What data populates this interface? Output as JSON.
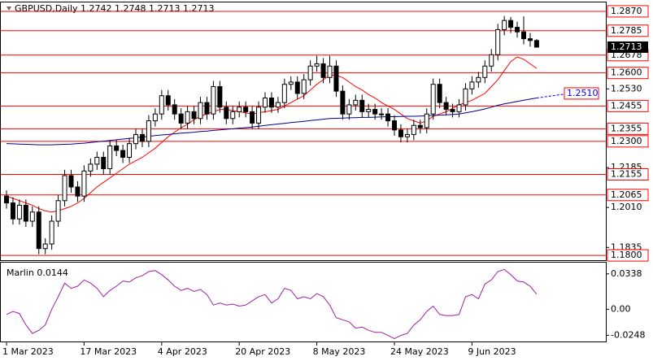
{
  "chart_data": {
    "type": "candlestick",
    "title": "GBPUSD,Daily  1.2742 1.2748 1.2713 1.2713",
    "categories": [
      "1 Mar 2023",
      null,
      null,
      null,
      null,
      null,
      null,
      null,
      null,
      null,
      null,
      null,
      "17 Mar 2023",
      null,
      null,
      null,
      null,
      null,
      null,
      null,
      null,
      null,
      null,
      null,
      "4 Apr 2023",
      null,
      null,
      null,
      null,
      null,
      null,
      null,
      null,
      null,
      null,
      null,
      "20 Apr 2023",
      null,
      null,
      null,
      null,
      null,
      null,
      null,
      null,
      null,
      null,
      null,
      "8 May 2023",
      null,
      null,
      null,
      null,
      null,
      null,
      null,
      null,
      null,
      null,
      null,
      "24 May 2023",
      null,
      null,
      null,
      null,
      null,
      null,
      null,
      null,
      null,
      null,
      null,
      "9 Jun 2023",
      null,
      null,
      null,
      null,
      null,
      null,
      null,
      null,
      null,
      null
    ],
    "open": [
      1.206,
      1.203,
      1.196,
      1.202,
      1.195,
      1.199,
      1.183,
      1.185,
      1.195,
      1.204,
      1.215,
      1.21,
      1.206,
      1.217,
      1.22,
      1.223,
      1.218,
      1.228,
      1.226,
      1.223,
      1.229,
      1.233,
      1.23,
      1.239,
      1.242,
      1.25,
      1.246,
      1.242,
      1.238,
      1.243,
      1.24,
      1.247,
      1.242,
      1.254,
      1.245,
      1.24,
      1.243,
      1.245,
      1.243,
      1.238,
      1.245,
      1.249,
      1.245,
      1.247,
      1.255,
      1.256,
      1.251,
      1.257,
      1.263,
      1.264,
      1.258,
      1.263,
      1.252,
      1.242,
      1.246,
      1.248,
      1.243,
      1.244,
      1.242,
      1.242,
      1.239,
      1.235,
      1.232,
      1.233,
      1.237,
      1.236,
      1.242,
      1.255,
      1.247,
      1.244,
      1.243,
      1.246,
      1.253,
      1.256,
      1.258,
      1.263,
      1.268,
      1.279,
      1.283,
      1.28,
      1.278,
      1.275,
      1.2742
    ],
    "high": [
      1.2085,
      1.2055,
      1.2045,
      1.2045,
      1.2015,
      1.2015,
      1.1875,
      1.1975,
      1.2065,
      1.2175,
      1.2175,
      1.2125,
      1.2195,
      1.2225,
      1.2255,
      1.2255,
      1.2305,
      1.2305,
      1.2285,
      1.2315,
      1.2355,
      1.2355,
      1.2415,
      1.2445,
      1.2525,
      1.2525,
      1.2485,
      1.2445,
      1.2455,
      1.2455,
      1.2495,
      1.2495,
      1.2565,
      1.2565,
      1.2475,
      1.2455,
      1.2475,
      1.2475,
      1.2455,
      1.2475,
      1.2515,
      1.2515,
      1.2495,
      1.2575,
      1.2585,
      1.2585,
      1.2595,
      1.2655,
      1.2675,
      1.2665,
      1.2675,
      1.2655,
      1.2545,
      1.2485,
      1.2505,
      1.2505,
      1.2465,
      1.2465,
      1.2445,
      1.2445,
      1.2415,
      1.2375,
      1.2355,
      1.2395,
      1.2395,
      1.2445,
      1.2575,
      1.2575,
      1.2495,
      1.2465,
      1.2485,
      1.2555,
      1.2585,
      1.2605,
      1.2655,
      1.2705,
      1.2815,
      1.285,
      1.2845,
      1.2825,
      1.2848,
      1.2775,
      1.2748
    ],
    "low": [
      1.2005,
      1.1935,
      1.1935,
      1.1925,
      1.1925,
      1.1805,
      1.1805,
      1.1825,
      1.1925,
      1.2015,
      1.2075,
      1.2035,
      1.2035,
      1.2145,
      1.2175,
      1.2155,
      1.2155,
      1.2235,
      1.2205,
      1.2205,
      1.2265,
      1.2275,
      1.2275,
      1.2365,
      1.2395,
      1.2435,
      1.2395,
      1.2355,
      1.2355,
      1.2375,
      1.2375,
      1.2395,
      1.2395,
      1.2425,
      1.2375,
      1.2375,
      1.2405,
      1.2405,
      1.2355,
      1.2355,
      1.2425,
      1.2425,
      1.2425,
      1.2445,
      1.2525,
      1.2485,
      1.2485,
      1.2545,
      1.2605,
      1.2555,
      1.2555,
      1.2495,
      1.2395,
      1.2395,
      1.2435,
      1.2405,
      1.2405,
      1.2395,
      1.2395,
      1.2365,
      1.2325,
      1.2295,
      1.2295,
      1.2305,
      1.2335,
      1.2335,
      1.2395,
      1.2445,
      1.2415,
      1.2405,
      1.2405,
      1.2435,
      1.2505,
      1.2535,
      1.2555,
      1.2605,
      1.2655,
      1.2765,
      1.2775,
      1.2755,
      1.2725,
      1.2715,
      1.2713
    ],
    "close": [
      1.203,
      1.196,
      1.202,
      1.195,
      1.199,
      1.183,
      1.185,
      1.195,
      1.204,
      1.215,
      1.21,
      1.206,
      1.217,
      1.22,
      1.223,
      1.218,
      1.228,
      1.226,
      1.223,
      1.229,
      1.233,
      1.23,
      1.239,
      1.242,
      1.25,
      1.246,
      1.242,
      1.238,
      1.243,
      1.24,
      1.247,
      1.242,
      1.254,
      1.245,
      1.24,
      1.243,
      1.245,
      1.243,
      1.238,
      1.245,
      1.249,
      1.245,
      1.247,
      1.255,
      1.256,
      1.251,
      1.257,
      1.263,
      1.264,
      1.258,
      1.263,
      1.252,
      1.242,
      1.246,
      1.248,
      1.243,
      1.244,
      1.242,
      1.242,
      1.239,
      1.235,
      1.232,
      1.233,
      1.237,
      1.236,
      1.242,
      1.255,
      1.247,
      1.244,
      1.243,
      1.246,
      1.253,
      1.256,
      1.258,
      1.263,
      1.268,
      1.279,
      1.283,
      1.28,
      1.278,
      1.275,
      1.2742,
      1.2713
    ],
    "series": [
      {
        "color": "#ff0000",
        "values": [
          1.206,
          1.205,
          1.204,
          1.203,
          1.202,
          1.2005,
          1.1995,
          1.199,
          1.1995,
          1.2005,
          1.2015,
          1.203,
          1.205,
          1.2075,
          1.21,
          1.212,
          1.214,
          1.216,
          1.218,
          1.22,
          1.2215,
          1.223,
          1.225,
          1.227,
          1.2295,
          1.232,
          1.234,
          1.236,
          1.2375,
          1.2395,
          1.241,
          1.242,
          1.243,
          1.244,
          1.244,
          1.2435,
          1.243,
          1.2425,
          1.242,
          1.2425,
          1.243,
          1.2435,
          1.244,
          1.2455,
          1.247,
          1.2485,
          1.25,
          1.2525,
          1.255,
          1.257,
          1.259,
          1.259,
          1.258,
          1.256,
          1.254,
          1.2525,
          1.2505,
          1.249,
          1.247,
          1.2455,
          1.244,
          1.242,
          1.24,
          1.239,
          1.238,
          1.239,
          1.241,
          1.242,
          1.243,
          1.2445,
          1.246,
          1.247,
          1.248,
          1.2495,
          1.251,
          1.254,
          1.257,
          1.261,
          1.265,
          1.267,
          1.266,
          1.264,
          1.262
        ]
      },
      {
        "color": "#00008b",
        "values": [
          1.229,
          1.2289,
          1.2288,
          1.2287,
          1.2286,
          1.2285,
          1.2285,
          1.2285,
          1.2286,
          1.2287,
          1.2288,
          1.229,
          1.2292,
          1.2295,
          1.2298,
          1.2301,
          1.2304,
          1.2307,
          1.231,
          1.2313,
          1.2316,
          1.2319,
          1.2322,
          1.2325,
          1.2328,
          1.233,
          1.2333,
          1.2336,
          1.2338,
          1.234,
          1.2343,
          1.2345,
          1.2348,
          1.235,
          1.2353,
          1.2355,
          1.2358,
          1.236,
          1.2363,
          1.2366,
          1.237,
          1.2373,
          1.2376,
          1.2379,
          1.2382,
          1.2385,
          1.2388,
          1.2391,
          1.2394,
          1.2397,
          1.24,
          1.2401,
          1.2402,
          1.2403,
          1.2404,
          1.2405,
          1.2405,
          1.2406,
          1.2407,
          1.2408,
          1.2408,
          1.2409,
          1.241,
          1.241,
          1.2411,
          1.2412,
          1.2414,
          1.2415,
          1.2416,
          1.2418,
          1.242,
          1.2425,
          1.243,
          1.2436,
          1.2442,
          1.245,
          1.2458,
          1.2464,
          1.247,
          1.2475,
          1.248,
          1.2485,
          1.249
        ]
      }
    ],
    "trendline": {
      "color": "#0000ff",
      "end": {
        "value": 1.251,
        "label": "1.2510"
      }
    },
    "ylim": [
      1.1779,
      1.2909
    ],
    "yticks": [
      {
        "value": 1.253,
        "label": "1.2530"
      },
      1.2185,
      {
        "value": 1.201,
        "label": "1.2010"
      },
      1.1835
    ],
    "levels": [
      {
        "value": 1.287,
        "label": "1.2870"
      },
      1.2785,
      1.2678,
      {
        "value": 1.26,
        "label": "1.2600"
      },
      1.2455,
      1.2355,
      {
        "value": 1.23,
        "label": "1.2300"
      },
      1.2155,
      1.2065,
      {
        "value": 1.18,
        "label": "1.1800"
      }
    ],
    "level_color": "#ff0000",
    "price": 1.2713,
    "indicator": {
      "title": "Marlin 0.0144",
      "color": "#a020a0",
      "ylim": [
        -0.0307,
        0.0445
      ],
      "yticks": [
        0.0338,
        {
          "value": 0,
          "label": "0.00"
        },
        -0.0248
      ],
      "values": [
        -0.005,
        -0.002,
        -0.004,
        -0.015,
        -0.023,
        -0.02,
        -0.015,
        0.0,
        0.012,
        0.025,
        0.02,
        0.022,
        0.028,
        0.025,
        0.02,
        0.012,
        0.018,
        0.022,
        0.027,
        0.026,
        0.03,
        0.032,
        0.036,
        0.037,
        0.033,
        0.028,
        0.022,
        0.018,
        0.02,
        0.017,
        0.019,
        0.014,
        0.004,
        0.006,
        0.004,
        0.005,
        0.003,
        0.004,
        0.008,
        0.012,
        0.014,
        0.006,
        0.01,
        0.02,
        0.018,
        0.01,
        0.012,
        0.01,
        0.015,
        0.012,
        0.004,
        -0.008,
        -0.01,
        -0.012,
        -0.018,
        -0.017,
        -0.02,
        -0.022,
        -0.022,
        -0.025,
        -0.028,
        -0.025,
        -0.023,
        -0.015,
        -0.01,
        -0.002,
        0.003,
        -0.005,
        -0.006,
        -0.006,
        -0.005,
        0.012,
        0.014,
        0.01,
        0.024,
        0.028,
        0.036,
        0.038,
        0.033,
        0.027,
        0.026,
        0.022,
        0.0144
      ]
    }
  }
}
